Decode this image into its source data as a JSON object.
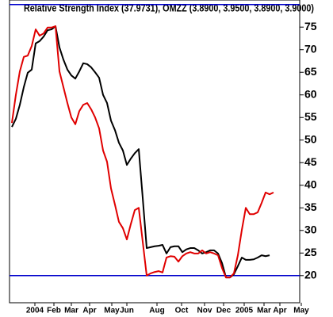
{
  "chart_data": {
    "type": "line",
    "title": "Relative Strength Index (37.9731), OMZZ (3.8900, 3.9500, 3.8900, 3.9000)",
    "x": [
      0,
      1,
      2,
      3,
      4,
      5,
      6,
      7,
      8,
      9,
      10,
      11,
      12,
      13,
      14,
      15,
      16,
      17,
      18,
      19,
      20,
      21,
      22,
      23,
      24,
      25,
      26,
      27,
      28,
      29,
      30,
      31,
      32,
      33,
      34,
      35,
      36,
      37,
      38,
      39,
      40,
      41,
      42,
      43,
      44,
      45,
      46,
      47,
      48,
      49,
      50,
      51,
      52,
      53,
      54,
      55,
      56,
      57,
      58,
      59,
      60,
      61,
      62,
      63,
      64,
      65,
      66
    ],
    "series": [
      {
        "name": "RSI",
        "color": "#000000",
        "values": [
          52.9,
          54.7,
          57.8,
          61.7,
          64.9,
          65.6,
          71.4,
          71.9,
          72.9,
          74.3,
          74.5,
          75.2,
          70.5,
          67.8,
          65.6,
          64.3,
          63.6,
          65.2,
          67.0,
          66.8,
          66.1,
          65.0,
          63.8,
          60.0,
          58.2,
          54.3,
          52.2,
          49.4,
          47.7,
          44.5,
          45.9,
          47.1,
          48.0,
          37.2,
          26.1,
          26.3,
          26.5,
          26.6,
          26.8,
          24.9,
          26.3,
          26.5,
          26.5,
          25.2,
          25.8,
          26.1,
          26.1,
          25.6,
          24.9,
          25.2,
          25.6,
          25.6,
          24.9,
          22.8,
          19.6,
          19.6,
          20.3,
          22.1,
          24.0,
          23.5,
          23.5,
          23.6,
          24.0,
          24.5,
          24.3,
          24.5,
          null
        ]
      },
      {
        "name": "OMZZ",
        "color": "#e00000",
        "values": [
          53.8,
          60.0,
          65.2,
          68.4,
          68.7,
          70.8,
          74.5,
          73.1,
          73.6,
          74.9,
          74.9,
          75.2,
          65.2,
          61.7,
          58.2,
          55.0,
          53.5,
          56.4,
          57.8,
          58.2,
          56.8,
          55.0,
          52.6,
          47.7,
          45.2,
          39.3,
          35.7,
          31.9,
          30.5,
          28.0,
          31.4,
          34.5,
          35.0,
          27.5,
          20.0,
          20.5,
          20.8,
          21.0,
          20.7,
          24.0,
          24.3,
          24.2,
          23.1,
          24.3,
          24.9,
          25.2,
          24.9,
          24.9,
          25.6,
          24.9,
          25.2,
          24.9,
          24.5,
          21.7,
          19.6,
          19.6,
          20.5,
          24.5,
          30.1,
          35.0,
          33.6,
          33.6,
          34.0,
          36.1,
          38.4,
          38.0,
          38.4
        ]
      }
    ],
    "xlim": [
      -0.6,
      72.6
    ],
    "xticks": [
      {
        "value": 5.8,
        "label": "2004"
      },
      {
        "value": 10.6,
        "label": "Feb"
      },
      {
        "value": 15,
        "label": "Mar"
      },
      {
        "value": 19.6,
        "label": "Apr"
      },
      {
        "value": 25.2,
        "label": "May"
      },
      {
        "value": 29,
        "label": "Jun"
      },
      {
        "value": 36.6,
        "label": "Aug"
      },
      {
        "value": 42.8,
        "label": "Oct"
      },
      {
        "value": 48.6,
        "label": "Nov"
      },
      {
        "value": 53.4,
        "label": "Dec"
      },
      {
        "value": 58.6,
        "label": "2005"
      },
      {
        "value": 63.6,
        "label": "Mar"
      },
      {
        "value": 67.6,
        "label": "Apr"
      },
      {
        "value": 73,
        "label": "May"
      }
    ],
    "ylim": [
      14,
      81
    ],
    "yticks": [
      20,
      25,
      30,
      35,
      40,
      45,
      50,
      55,
      60,
      65,
      70,
      75
    ],
    "reference_lines": [
      80,
      20
    ],
    "reference_color": "#0000cc"
  }
}
